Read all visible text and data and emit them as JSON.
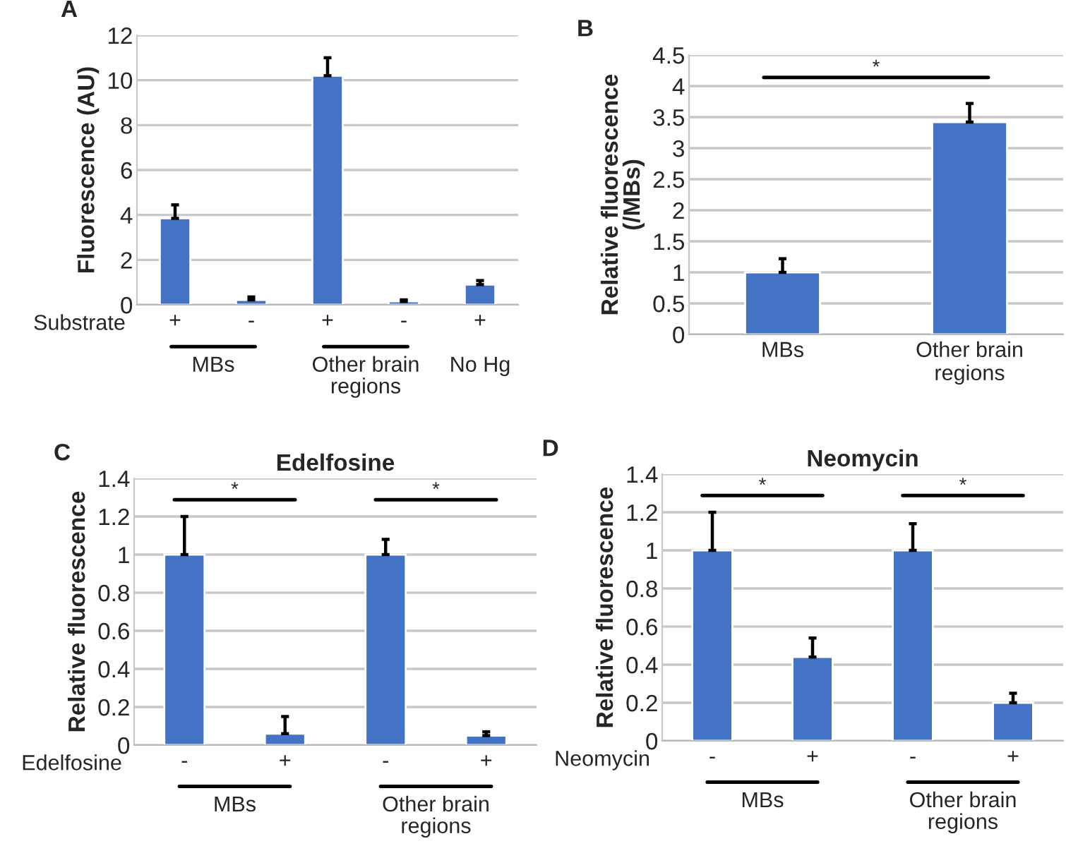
{
  "chart_data": [
    {
      "type": "bar",
      "ylabel": "Fluorescence (AU)",
      "categories": [
        "+",
        "-",
        "+",
        "-",
        "+"
      ],
      "values": [
        3.85,
        0.22,
        10.2,
        0.15,
        0.9
      ],
      "errors": [
        [
          3.85,
          4.45
        ],
        [
          0.22,
          0.35
        ],
        [
          10.2,
          11.0
        ],
        [
          0.15,
          0.22
        ],
        [
          0.9,
          1.08
        ]
      ],
      "color": "#4472c4",
      "ylim": [
        0,
        12
      ],
      "yticks": [
        0,
        2,
        4,
        6,
        8,
        10,
        12
      ],
      "grid": "y",
      "annotations": [
        "A",
        "Substrate",
        "MBs",
        "Other brain regions",
        "No Hg"
      ]
    },
    {
      "type": "bar",
      "ylabel": "Relative fluorescence (/MBs)",
      "categories": [
        "MBs",
        "Other brain regions"
      ],
      "values": [
        1,
        3.42
      ],
      "errors": [
        [
          1,
          1.22
        ],
        [
          3.42,
          3.72
        ]
      ],
      "color": "#4472c4",
      "ylim": [
        0,
        4.5
      ],
      "yticks": [
        0,
        0.5,
        1,
        1.5,
        2,
        2.5,
        3,
        3.5,
        4,
        4.5
      ],
      "grid": "y",
      "annotations": [
        "B",
        "*"
      ]
    },
    {
      "type": "bar",
      "title": "Edelfosine",
      "ylabel": "Relative fluorescence",
      "categories": [
        "-",
        "+",
        "-",
        "+"
      ],
      "values": [
        1,
        0.06,
        1,
        0.05
      ],
      "errors": [
        [
          1,
          1.2
        ],
        [
          0.06,
          0.15
        ],
        [
          1,
          1.08
        ],
        [
          0.05,
          0.07
        ]
      ],
      "color": "#4472c4",
      "ylim": [
        0,
        1.4
      ],
      "yticks": [
        0,
        0.2,
        0.4,
        0.6,
        0.8,
        1,
        1.2,
        1.4
      ],
      "grid": "y",
      "annotations": [
        "C",
        "Edelfosine",
        "MBs",
        "Other brain regions",
        "*",
        "*"
      ]
    },
    {
      "type": "bar",
      "title": "Neomycin",
      "ylabel": "Relative fluorescence",
      "categories": [
        "-",
        "+",
        "-",
        "+"
      ],
      "values": [
        1,
        0.44,
        1,
        0.2
      ],
      "errors": [
        [
          1,
          1.2
        ],
        [
          0.44,
          0.54
        ],
        [
          1,
          1.14
        ],
        [
          0.2,
          0.25
        ]
      ],
      "color": "#4472c4",
      "ylim": [
        0,
        1.4
      ],
      "yticks": [
        0,
        0.2,
        0.4,
        0.6,
        0.8,
        1,
        1.2,
        1.4
      ],
      "grid": "y",
      "annotations": [
        "D",
        "Neomycin",
        "MBs",
        "Other brain regions",
        "*",
        "*"
      ]
    }
  ]
}
